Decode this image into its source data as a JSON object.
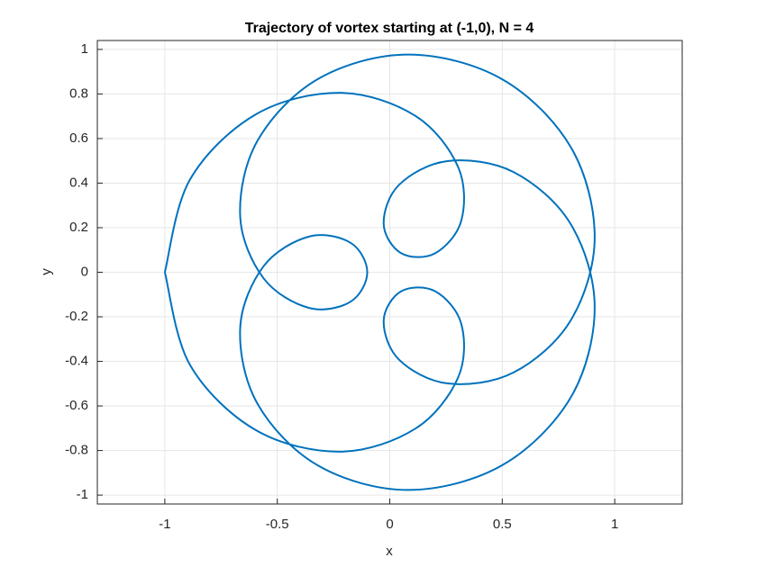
{
  "chart_data": {
    "type": "line",
    "title": "Trajectory of vortex starting at (-1,0), N = 4",
    "xlabel": "x",
    "ylabel": "y",
    "xlim": [
      -1.3,
      1.3
    ],
    "ylim": [
      -1.04,
      1.04
    ],
    "xticks": [
      -1,
      -0.5,
      0,
      0.5,
      1
    ],
    "yticks": [
      -1,
      -0.8,
      -0.6,
      -0.4,
      -0.2,
      0,
      0.2,
      0.4,
      0.6,
      0.8,
      1
    ],
    "grid": true,
    "series": [
      {
        "color": "#0072bd",
        "x": [
          -1,
          -0.888,
          -0.593,
          -0.217,
          0.115,
          0.304,
          0.318,
          0.201,
          0.05,
          -0.027,
          0.041,
          0.257,
          0.55,
          0.805,
          0.911,
          0.805,
          0.5,
          0.083,
          -0.318,
          -0.588,
          -0.665,
          -0.561,
          -0.359,
          -0.174,
          -0.1,
          -0.174,
          -0.359,
          -0.561,
          -0.665,
          -0.588,
          -0.318,
          0.083,
          0.5,
          0.805,
          0.911,
          0.805,
          0.55,
          0.257,
          0.041,
          -0.027,
          0.05,
          0.201,
          0.318,
          0.304,
          0.115,
          -0.217,
          -0.593,
          -0.888,
          -1
        ],
        "values": [
          0,
          -0.416,
          -0.71,
          -0.805,
          -0.701,
          -0.472,
          -0.232,
          -0.085,
          -0.086,
          -0.217,
          -0.392,
          -0.499,
          -0.45,
          -0.215,
          0.158,
          0.561,
          0.866,
          0.977,
          0.868,
          0.59,
          0.251,
          -0.027,
          -0.16,
          -0.132,
          0,
          0.132,
          0.16,
          0.027,
          -0.251,
          -0.59,
          -0.868,
          -0.977,
          -0.866,
          -0.561,
          -0.158,
          0.215,
          0.45,
          0.499,
          0.392,
          0.217,
          0.086,
          0.085,
          0.232,
          0.472,
          0.701,
          0.805,
          0.71,
          0.416,
          0
        ]
      }
    ]
  }
}
